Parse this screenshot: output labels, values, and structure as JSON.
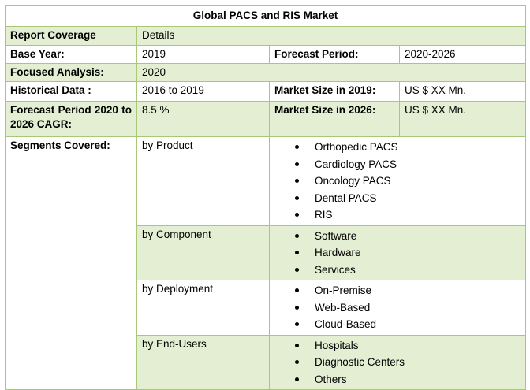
{
  "title": "Global PACS and RIS Market",
  "header": {
    "left": "Report Coverage",
    "right": "Details"
  },
  "base_year": {
    "label": "Base Year:",
    "value": "2019",
    "label2": "Forecast Period:",
    "value2": "2020-2026"
  },
  "focused_analysis": {
    "label": "Focused Analysis:",
    "value": "2020"
  },
  "historical": {
    "label": "Historical Data :",
    "value": "2016 to 2019",
    "label2": "Market Size in 2019:",
    "value2": "US $ XX Mn."
  },
  "forecast_cagr": {
    "label": "Forecast Period 2020 to 2026 CAGR:",
    "value": "8.5 %",
    "label2": "Market Size in 2026:",
    "value2": "US $ XX Mn."
  },
  "segments": {
    "label": "Segments Covered:",
    "groups": [
      {
        "name": "by Product",
        "items": [
          "Orthopedic PACS",
          "Cardiology PACS",
          "Oncology PACS",
          "Dental PACS",
          "RIS"
        ]
      },
      {
        "name": "by Component",
        "items": [
          "Software",
          "Hardware",
          "Services"
        ]
      },
      {
        "name": "by Deployment",
        "items": [
          "On-Premise",
          "Web-Based",
          "Cloud-Based"
        ]
      },
      {
        "name": "by End-Users",
        "items": [
          "Hospitals",
          "Diagnostic Centers",
          "Others"
        ]
      }
    ]
  }
}
